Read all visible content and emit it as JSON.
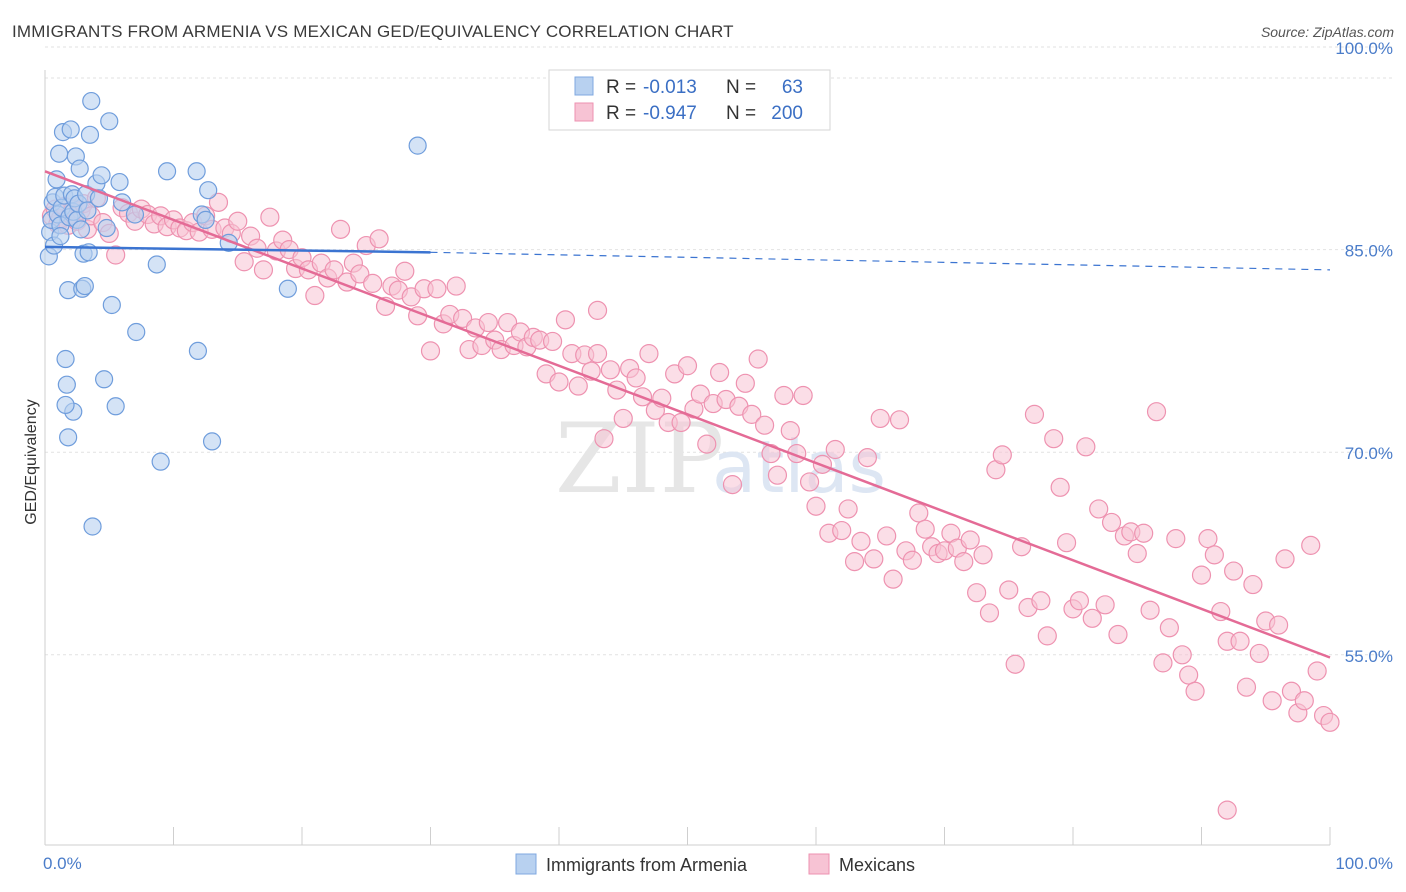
{
  "title": "IMMIGRANTS FROM ARMENIA VS MEXICAN GED/EQUIVALENCY CORRELATION CHART",
  "source": "Source: ZipAtlas.com",
  "watermark": {
    "a": "ZIP",
    "b": "atlas"
  },
  "legend": {
    "r_label": "R =",
    "n_label": "N =",
    "rows": [
      {
        "name": "Immigrants from Armenia",
        "r": "-0.013",
        "n": "63",
        "fill": "#b8d1f0",
        "stroke": "#7fa8e0"
      },
      {
        "name": "Mexicans",
        "r": "-0.947",
        "n": "200",
        "fill": "#f7c3d4",
        "stroke": "#ee92b0"
      }
    ]
  },
  "chart_data": {
    "type": "scatter",
    "title": "IMMIGRANTS FROM ARMENIA VS MEXICAN GED/EQUIVALENCY CORRELATION CHART",
    "xlabel": "",
    "ylabel": "GED/Equivalency",
    "xlim": [
      0,
      100
    ],
    "ylim": [
      42,
      102
    ],
    "x_tick_labels": [
      "0.0%",
      "100.0%"
    ],
    "y_ticks": [
      100,
      85,
      70,
      55
    ],
    "y_tick_labels": [
      "100.0%",
      "85.0%",
      "70.0%",
      "55.0%"
    ],
    "grid": true,
    "legend_position": "top-center",
    "series": [
      {
        "name": "Immigrants from Armenia",
        "color": "#4a7cc9",
        "fill": "#b8d1f0",
        "trend": {
          "x0": 0,
          "y0": 85.2,
          "x1": 30,
          "y1": 84.8,
          "dash_to_x": 100,
          "dash_to_y": 83.5,
          "color": "#3b74d1"
        },
        "points": [
          [
            0.3,
            84.5
          ],
          [
            0.4,
            86.3
          ],
          [
            0.5,
            87.2
          ],
          [
            0.6,
            88.5
          ],
          [
            0.7,
            85.3
          ],
          [
            0.8,
            88.9
          ],
          [
            0.9,
            90.2
          ],
          [
            1.0,
            87.6
          ],
          [
            1.1,
            92.1
          ],
          [
            1.2,
            86.8
          ],
          [
            1.3,
            88.1
          ],
          [
            1.4,
            93.7
          ],
          [
            1.5,
            89.0
          ],
          [
            1.6,
            76.9
          ],
          [
            1.7,
            75.0
          ],
          [
            1.8,
            82.0
          ],
          [
            1.9,
            87.4
          ],
          [
            2.0,
            93.9
          ],
          [
            2.1,
            89.1
          ],
          [
            2.2,
            87.8
          ],
          [
            2.3,
            88.8
          ],
          [
            2.4,
            91.9
          ],
          [
            2.5,
            87.2
          ],
          [
            2.6,
            88.4
          ],
          [
            2.7,
            91.0
          ],
          [
            2.8,
            86.5
          ],
          [
            2.9,
            82.1
          ],
          [
            3.0,
            84.7
          ],
          [
            3.1,
            82.3
          ],
          [
            3.2,
            89.1
          ],
          [
            3.3,
            87.9
          ],
          [
            3.4,
            84.8
          ],
          [
            3.5,
            93.5
          ],
          [
            3.6,
            96.0
          ],
          [
            3.7,
            64.5
          ],
          [
            4.0,
            89.9
          ],
          [
            4.2,
            88.8
          ],
          [
            4.4,
            90.5
          ],
          [
            4.6,
            75.4
          ],
          [
            4.8,
            86.6
          ],
          [
            5.0,
            94.5
          ],
          [
            5.2,
            80.9
          ],
          [
            5.5,
            73.4
          ],
          [
            5.8,
            90.0
          ],
          [
            6.0,
            88.5
          ],
          [
            7.0,
            87.6
          ],
          [
            7.1,
            78.9
          ],
          [
            8.7,
            83.9
          ],
          [
            9.0,
            69.3
          ],
          [
            9.5,
            90.8
          ],
          [
            11.8,
            90.8
          ],
          [
            11.9,
            77.5
          ],
          [
            12.2,
            87.6
          ],
          [
            12.5,
            87.2
          ],
          [
            12.7,
            89.4
          ],
          [
            13.0,
            70.8
          ],
          [
            14.3,
            85.5
          ],
          [
            18.9,
            82.1
          ],
          [
            29.0,
            92.7
          ],
          [
            1.8,
            71.1
          ],
          [
            2.2,
            73.0
          ],
          [
            1.6,
            73.5
          ],
          [
            1.2,
            86.0
          ]
        ]
      },
      {
        "name": "Mexicans",
        "color": "#e8719a",
        "fill": "#f7c3d4",
        "trend": {
          "x0": 0,
          "y0": 90.8,
          "x1": 100,
          "y1": 54.8,
          "color": "#e46b96"
        },
        "points": [
          [
            0.5,
            87.5
          ],
          [
            0.8,
            88.0
          ],
          [
            1.0,
            86.9
          ],
          [
            1.2,
            87.3
          ],
          [
            1.5,
            88.2
          ],
          [
            1.8,
            86.8
          ],
          [
            2.0,
            87.6
          ],
          [
            2.2,
            88.0
          ],
          [
            2.5,
            87.1
          ],
          [
            2.8,
            87.9
          ],
          [
            3.0,
            88.4
          ],
          [
            3.3,
            86.5
          ],
          [
            3.6,
            87.5
          ],
          [
            4.0,
            88.8
          ],
          [
            4.5,
            87.0
          ],
          [
            5.0,
            86.2
          ],
          [
            5.5,
            84.6
          ],
          [
            6.0,
            88.1
          ],
          [
            6.5,
            87.7
          ],
          [
            7.0,
            87.1
          ],
          [
            7.5,
            88.0
          ],
          [
            8.0,
            87.6
          ],
          [
            8.5,
            86.9
          ],
          [
            9.0,
            87.5
          ],
          [
            9.5,
            86.7
          ],
          [
            10.0,
            87.2
          ],
          [
            10.5,
            86.6
          ],
          [
            11.0,
            86.4
          ],
          [
            11.5,
            87.0
          ],
          [
            12.0,
            86.3
          ],
          [
            12.5,
            87.5
          ],
          [
            13.0,
            86.5
          ],
          [
            13.5,
            88.5
          ],
          [
            14.0,
            86.6
          ],
          [
            14.5,
            86.2
          ],
          [
            15.0,
            87.1
          ],
          [
            15.5,
            84.1
          ],
          [
            16.0,
            86.0
          ],
          [
            16.5,
            85.1
          ],
          [
            17.0,
            83.5
          ],
          [
            17.5,
            87.4
          ],
          [
            18.0,
            84.9
          ],
          [
            18.5,
            85.7
          ],
          [
            19.0,
            85.0
          ],
          [
            19.5,
            83.6
          ],
          [
            20.0,
            84.4
          ],
          [
            20.5,
            83.5
          ],
          [
            21.0,
            81.6
          ],
          [
            21.5,
            84.0
          ],
          [
            22.0,
            82.9
          ],
          [
            22.5,
            83.5
          ],
          [
            23.0,
            86.5
          ],
          [
            23.5,
            82.6
          ],
          [
            24.0,
            84.0
          ],
          [
            24.5,
            83.2
          ],
          [
            25.0,
            85.3
          ],
          [
            25.5,
            82.5
          ],
          [
            26.0,
            85.8
          ],
          [
            26.5,
            80.8
          ],
          [
            27.0,
            82.3
          ],
          [
            27.5,
            82.0
          ],
          [
            28.0,
            83.4
          ],
          [
            28.5,
            81.5
          ],
          [
            29.0,
            80.1
          ],
          [
            29.5,
            82.1
          ],
          [
            30.0,
            77.5
          ],
          [
            30.5,
            82.1
          ],
          [
            31.0,
            79.5
          ],
          [
            31.5,
            80.2
          ],
          [
            32.0,
            82.3
          ],
          [
            32.5,
            79.9
          ],
          [
            33.0,
            77.6
          ],
          [
            33.5,
            79.2
          ],
          [
            34.0,
            77.9
          ],
          [
            34.5,
            79.6
          ],
          [
            35.0,
            78.3
          ],
          [
            35.5,
            77.6
          ],
          [
            36.0,
            79.6
          ],
          [
            36.5,
            77.9
          ],
          [
            37.0,
            78.9
          ],
          [
            37.5,
            77.8
          ],
          [
            38.0,
            78.5
          ],
          [
            38.5,
            78.3
          ],
          [
            39.0,
            75.8
          ],
          [
            39.5,
            78.2
          ],
          [
            40.0,
            75.2
          ],
          [
            40.5,
            79.8
          ],
          [
            41.0,
            77.3
          ],
          [
            41.5,
            74.9
          ],
          [
            42.0,
            77.2
          ],
          [
            42.5,
            76.0
          ],
          [
            43.0,
            77.3
          ],
          [
            43.5,
            71.0
          ],
          [
            44.0,
            76.1
          ],
          [
            44.5,
            74.6
          ],
          [
            45.0,
            72.5
          ],
          [
            45.5,
            76.2
          ],
          [
            46.0,
            75.5
          ],
          [
            46.5,
            74.1
          ],
          [
            47.0,
            77.3
          ],
          [
            47.5,
            73.1
          ],
          [
            48.0,
            74.0
          ],
          [
            48.5,
            72.2
          ],
          [
            49.0,
            75.8
          ],
          [
            49.5,
            72.2
          ],
          [
            50.0,
            76.4
          ],
          [
            50.5,
            73.2
          ],
          [
            51.0,
            74.3
          ],
          [
            51.5,
            70.6
          ],
          [
            52.0,
            73.6
          ],
          [
            52.5,
            75.9
          ],
          [
            53.0,
            73.9
          ],
          [
            53.5,
            67.6
          ],
          [
            54.0,
            73.4
          ],
          [
            54.5,
            75.1
          ],
          [
            55.0,
            72.8
          ],
          [
            55.5,
            76.9
          ],
          [
            56.0,
            72.0
          ],
          [
            56.5,
            69.9
          ],
          [
            57.0,
            68.3
          ],
          [
            57.5,
            74.2
          ],
          [
            58.0,
            71.6
          ],
          [
            58.5,
            69.9
          ],
          [
            59.0,
            74.2
          ],
          [
            59.5,
            67.8
          ],
          [
            60.0,
            66.0
          ],
          [
            60.5,
            69.1
          ],
          [
            61.0,
            64.0
          ],
          [
            61.5,
            70.2
          ],
          [
            62.0,
            64.2
          ],
          [
            62.5,
            65.8
          ],
          [
            63.0,
            61.9
          ],
          [
            63.5,
            63.4
          ],
          [
            64.0,
            69.6
          ],
          [
            64.5,
            62.1
          ],
          [
            65.0,
            72.5
          ],
          [
            65.5,
            63.8
          ],
          [
            66.0,
            60.6
          ],
          [
            66.5,
            72.4
          ],
          [
            67.0,
            62.7
          ],
          [
            67.5,
            62.0
          ],
          [
            68.0,
            65.5
          ],
          [
            68.5,
            64.3
          ],
          [
            69.0,
            63.0
          ],
          [
            69.5,
            62.5
          ],
          [
            70.0,
            62.7
          ],
          [
            70.5,
            64.0
          ],
          [
            71.0,
            62.9
          ],
          [
            71.5,
            61.9
          ],
          [
            72.0,
            63.5
          ],
          [
            72.5,
            59.6
          ],
          [
            73.0,
            62.4
          ],
          [
            73.5,
            58.1
          ],
          [
            74.0,
            68.7
          ],
          [
            74.5,
            69.8
          ],
          [
            75.0,
            59.8
          ],
          [
            75.5,
            54.3
          ],
          [
            76.0,
            63.0
          ],
          [
            76.5,
            58.5
          ],
          [
            77.0,
            72.8
          ],
          [
            77.5,
            59.0
          ],
          [
            78.0,
            56.4
          ],
          [
            78.5,
            71.0
          ],
          [
            79.0,
            67.4
          ],
          [
            79.5,
            63.3
          ],
          [
            80.0,
            58.4
          ],
          [
            80.5,
            59.0
          ],
          [
            81.0,
            70.4
          ],
          [
            81.5,
            57.7
          ],
          [
            82.0,
            65.8
          ],
          [
            82.5,
            58.7
          ],
          [
            83.0,
            64.8
          ],
          [
            83.5,
            56.5
          ],
          [
            84.0,
            63.8
          ],
          [
            84.5,
            64.1
          ],
          [
            85.0,
            62.5
          ],
          [
            85.5,
            64.0
          ],
          [
            86.0,
            58.3
          ],
          [
            86.5,
            73.0
          ],
          [
            87.0,
            54.4
          ],
          [
            87.5,
            57.0
          ],
          [
            88.0,
            63.6
          ],
          [
            88.5,
            55.0
          ],
          [
            89.0,
            53.5
          ],
          [
            89.5,
            52.3
          ],
          [
            90.0,
            60.9
          ],
          [
            90.5,
            63.6
          ],
          [
            91.0,
            62.4
          ],
          [
            91.5,
            58.2
          ],
          [
            92.0,
            56.0
          ],
          [
            92.5,
            61.2
          ],
          [
            93.0,
            56.0
          ],
          [
            93.5,
            52.6
          ],
          [
            94.0,
            60.2
          ],
          [
            94.5,
            55.1
          ],
          [
            95.0,
            57.5
          ],
          [
            95.5,
            51.6
          ],
          [
            96.0,
            57.2
          ],
          [
            96.5,
            62.1
          ],
          [
            97.0,
            52.3
          ],
          [
            97.5,
            50.7
          ],
          [
            98.0,
            51.6
          ],
          [
            98.5,
            63.1
          ],
          [
            99.0,
            53.8
          ],
          [
            99.5,
            50.5
          ],
          [
            100.0,
            50.0
          ],
          [
            92.0,
            43.5
          ],
          [
            43.0,
            80.5
          ]
        ]
      }
    ]
  },
  "bottom_legend": [
    {
      "label": "Immigrants from Armenia",
      "fill": "#b8d1f0",
      "stroke": "#7fa8e0"
    },
    {
      "label": "Mexicans",
      "fill": "#f7c3d4",
      "stroke": "#ee92b0"
    }
  ]
}
